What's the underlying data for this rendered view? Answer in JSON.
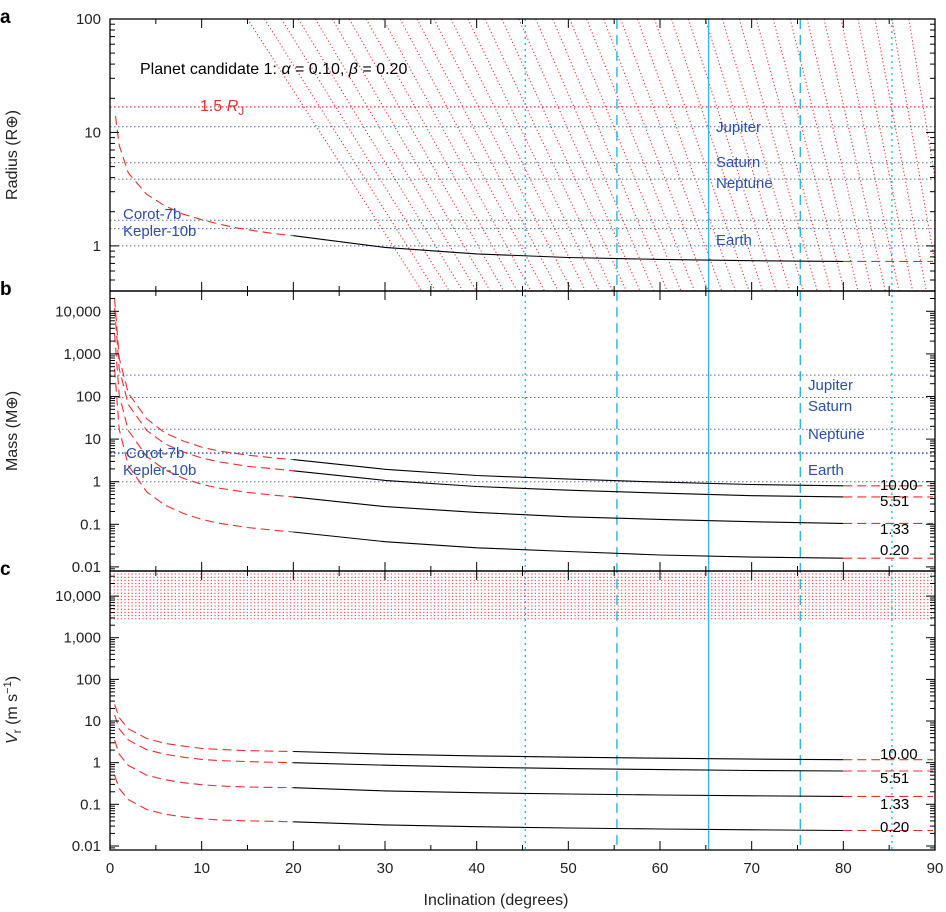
{
  "colors": {
    "black": "#000000",
    "red": "#e53030",
    "blue_ref": "#4a63c2",
    "cyan": "#31b7d8",
    "label_blue": "#2b4fa3"
  },
  "xaxis": {
    "label": "Inclination (degrees)",
    "range": [
      0,
      90
    ],
    "ticks": [
      0,
      10,
      20,
      30,
      40,
      50,
      60,
      70,
      80,
      90
    ]
  },
  "vertical_lines": [
    {
      "x": 45.3,
      "style": "dotted"
    },
    {
      "x": 55.3,
      "style": "dashed"
    },
    {
      "x": 65.3,
      "style": "solid"
    },
    {
      "x": 75.3,
      "style": "dashed"
    },
    {
      "x": 85.3,
      "style": "dotted"
    }
  ],
  "chart_data": [
    {
      "panel": "a",
      "type": "line",
      "ylabel": "Radius (R⊕)",
      "yscale": "log",
      "ylim": [
        0.4,
        100
      ],
      "yticks": [
        {
          "v": 1,
          "label": "1"
        },
        {
          "v": 10,
          "label": "10"
        },
        {
          "v": 100,
          "label": "100"
        }
      ],
      "annotation": {
        "prefix": "Planet candidate 1: ",
        "alpha_sym": "α",
        "alpha_val": " = 0.10, ",
        "beta_sym": "β",
        "beta_val": " = 0.20"
      },
      "rj_line": {
        "label_value": "1.5 ",
        "label_symbol": "R",
        "label_sub": "J",
        "y": 16.8
      },
      "reference_lines": [
        {
          "name": "Jupiter",
          "y": 11.2
        },
        {
          "name": "Saturn",
          "y": 5.4
        },
        {
          "name": "Neptune",
          "y": 3.88
        },
        {
          "name": "Corot-7b",
          "y": 1.68
        },
        {
          "name": "Kepler-10b",
          "y": 1.42
        },
        {
          "name": "Earth",
          "y": 1.0
        }
      ],
      "curves": [
        {
          "solid_x": [
            20,
            30,
            40,
            50,
            60,
            70,
            80
          ],
          "solid_y": [
            1.23,
            0.97,
            0.85,
            0.79,
            0.76,
            0.74,
            0.73
          ],
          "dashed_x": [
            0.6,
            1,
            2,
            4,
            6,
            8,
            10,
            12,
            14,
            16,
            18,
            20
          ],
          "dashed_y": [
            14,
            7.7,
            4.4,
            2.85,
            2.25,
            1.9,
            1.7,
            1.55,
            1.43,
            1.35,
            1.28,
            1.23
          ]
        }
      ],
      "excluded_region": "upper-right red dotted hatch"
    },
    {
      "panel": "b",
      "type": "line",
      "ylabel": "Mass (M⊕)",
      "yscale": "log",
      "ylim": [
        0.008,
        30000
      ],
      "yticks": [
        {
          "v": 0.01,
          "label": "0.01"
        },
        {
          "v": 0.1,
          "label": "0.1"
        },
        {
          "v": 1,
          "label": "1"
        },
        {
          "v": 10,
          "label": "10"
        },
        {
          "v": 100,
          "label": "100"
        },
        {
          "v": 1000,
          "label": "1,000"
        },
        {
          "v": 10000,
          "label": "10,000"
        }
      ],
      "reference_lines": [
        {
          "name": "Jupiter",
          "y": 318
        },
        {
          "name": "Saturn",
          "y": 95
        },
        {
          "name": "Neptune",
          "y": 17.1
        },
        {
          "name": "Corot-7b",
          "y": 4.8
        },
        {
          "name": "Kepler-10b",
          "y": 4.56
        },
        {
          "name": "Earth",
          "y": 1.0
        }
      ],
      "series": [
        {
          "name": "10.00",
          "solid_x": [
            20,
            30,
            40,
            50,
            60,
            70,
            80
          ],
          "solid_y": [
            3.3,
            1.95,
            1.4,
            1.15,
            0.98,
            0.86,
            0.8
          ],
          "dashed_x": [
            0.5,
            1,
            2,
            4,
            6,
            8,
            10,
            12,
            15,
            18,
            20
          ],
          "dashed_y": [
            20000,
            800,
            120,
            30,
            14,
            9,
            6.5,
            5.2,
            4.2,
            3.6,
            3.3
          ]
        },
        {
          "name": "5.51",
          "solid_x": [
            20,
            30,
            40,
            50,
            60,
            70,
            80
          ],
          "solid_y": [
            1.8,
            1.07,
            0.77,
            0.63,
            0.54,
            0.47,
            0.44
          ],
          "dashed_x": [
            0.5,
            1,
            2,
            4,
            6,
            8,
            10,
            12,
            15,
            18,
            20
          ],
          "dashed_y": [
            12000,
            450,
            65,
            16,
            7.7,
            5,
            3.6,
            2.9,
            2.3,
            2,
            1.8
          ]
        },
        {
          "name": "1.33",
          "solid_x": [
            20,
            30,
            40,
            50,
            60,
            70,
            80
          ],
          "solid_y": [
            0.44,
            0.26,
            0.19,
            0.15,
            0.13,
            0.115,
            0.105
          ],
          "dashed_x": [
            0.5,
            1,
            2,
            4,
            6,
            8,
            10,
            12,
            15,
            18,
            20
          ],
          "dashed_y": [
            3000,
            110,
            16,
            3.9,
            1.9,
            1.2,
            0.87,
            0.7,
            0.56,
            0.48,
            0.44
          ]
        },
        {
          "name": "0.20",
          "solid_x": [
            20,
            30,
            40,
            50,
            60,
            70,
            80
          ],
          "solid_y": [
            0.066,
            0.039,
            0.028,
            0.023,
            0.019,
            0.017,
            0.016
          ],
          "dashed_x": [
            0.5,
            1,
            2,
            4,
            6,
            8,
            10,
            12,
            15,
            18,
            20
          ],
          "dashed_y": [
            450,
            17,
            2.4,
            0.58,
            0.28,
            0.18,
            0.13,
            0.105,
            0.084,
            0.072,
            0.066
          ]
        }
      ]
    },
    {
      "panel": "c",
      "type": "line",
      "ylabel": "V",
      "ylabel_sub": "r",
      "ylabel_units": " (m s",
      "ylabel_sup": "−1",
      "ylabel_close": ")",
      "yscale": "log",
      "ylim": [
        0.008,
        40000
      ],
      "yticks": [
        {
          "v": 0.01,
          "label": "0.01"
        },
        {
          "v": 0.1,
          "label": "0.1"
        },
        {
          "v": 1,
          "label": "1"
        },
        {
          "v": 10,
          "label": "10"
        },
        {
          "v": 100,
          "label": "100"
        },
        {
          "v": 1000,
          "label": "1,000"
        },
        {
          "v": 10000,
          "label": "10,000"
        }
      ],
      "excluded_band": [
        2400,
        40000
      ],
      "series": [
        {
          "name": "10.00",
          "solid_x": [
            20,
            30,
            40,
            50,
            60,
            70,
            80
          ],
          "solid_y": [
            1.85,
            1.6,
            1.45,
            1.35,
            1.28,
            1.22,
            1.18
          ],
          "dashed_x": [
            0.5,
            1,
            2,
            4,
            6,
            8,
            10,
            12,
            15,
            18,
            20
          ],
          "dashed_y": [
            25,
            12,
            6.5,
            3.8,
            2.9,
            2.5,
            2.2,
            2.07,
            1.95,
            1.88,
            1.85
          ]
        },
        {
          "name": "5.51",
          "solid_x": [
            20,
            30,
            40,
            50,
            60,
            70,
            80
          ],
          "solid_y": [
            1.0,
            0.87,
            0.78,
            0.72,
            0.68,
            0.65,
            0.63
          ],
          "dashed_x": [
            0.5,
            1,
            2,
            4,
            6,
            8,
            10,
            12,
            15,
            18,
            20
          ],
          "dashed_y": [
            14,
            6.5,
            3.5,
            2.05,
            1.6,
            1.35,
            1.2,
            1.12,
            1.06,
            1.02,
            1.0
          ]
        },
        {
          "name": "1.33",
          "solid_x": [
            20,
            30,
            40,
            50,
            60,
            70,
            80
          ],
          "solid_y": [
            0.25,
            0.21,
            0.19,
            0.177,
            0.167,
            0.16,
            0.155
          ],
          "dashed_x": [
            0.5,
            1,
            2,
            4,
            6,
            8,
            10,
            12,
            15,
            18,
            20
          ],
          "dashed_y": [
            3.5,
            1.6,
            0.86,
            0.5,
            0.39,
            0.33,
            0.295,
            0.275,
            0.26,
            0.253,
            0.25
          ]
        },
        {
          "name": "0.20",
          "solid_x": [
            20,
            30,
            40,
            50,
            60,
            70,
            80
          ],
          "solid_y": [
            0.038,
            0.032,
            0.029,
            0.027,
            0.0255,
            0.0245,
            0.0235
          ],
          "dashed_x": [
            0.5,
            1,
            2,
            4,
            6,
            8,
            10,
            12,
            15,
            18,
            20
          ],
          "dashed_y": [
            0.5,
            0.24,
            0.13,
            0.075,
            0.058,
            0.05,
            0.045,
            0.042,
            0.04,
            0.039,
            0.038
          ]
        }
      ]
    }
  ]
}
